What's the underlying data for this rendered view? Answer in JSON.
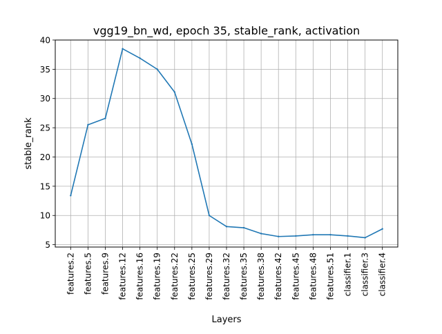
{
  "chart_data": {
    "type": "line",
    "title": "vgg19_bn_wd, epoch 35, stable_rank, activation",
    "xlabel": "Layers",
    "ylabel": "stable_rank",
    "ylim": [
      4.6,
      40
    ],
    "yticks": [
      5,
      10,
      15,
      20,
      25,
      30,
      35,
      40
    ],
    "grid": true,
    "categories": [
      "features.2",
      "features.5",
      "features.9",
      "features.12",
      "features.16",
      "features.19",
      "features.22",
      "features.25",
      "features.29",
      "features.32",
      "features.35",
      "features.38",
      "features.42",
      "features.45",
      "features.48",
      "features.51",
      "classifier.1",
      "classifier.3",
      "classifier.4"
    ],
    "series": [
      {
        "name": "stable_rank",
        "color": "#1f77b4",
        "values": [
          13.4,
          25.5,
          26.6,
          38.5,
          36.9,
          35.0,
          31.1,
          22.2,
          10.0,
          8.1,
          7.9,
          6.9,
          6.4,
          6.5,
          6.7,
          6.7,
          6.5,
          6.2,
          7.7
        ]
      }
    ]
  }
}
